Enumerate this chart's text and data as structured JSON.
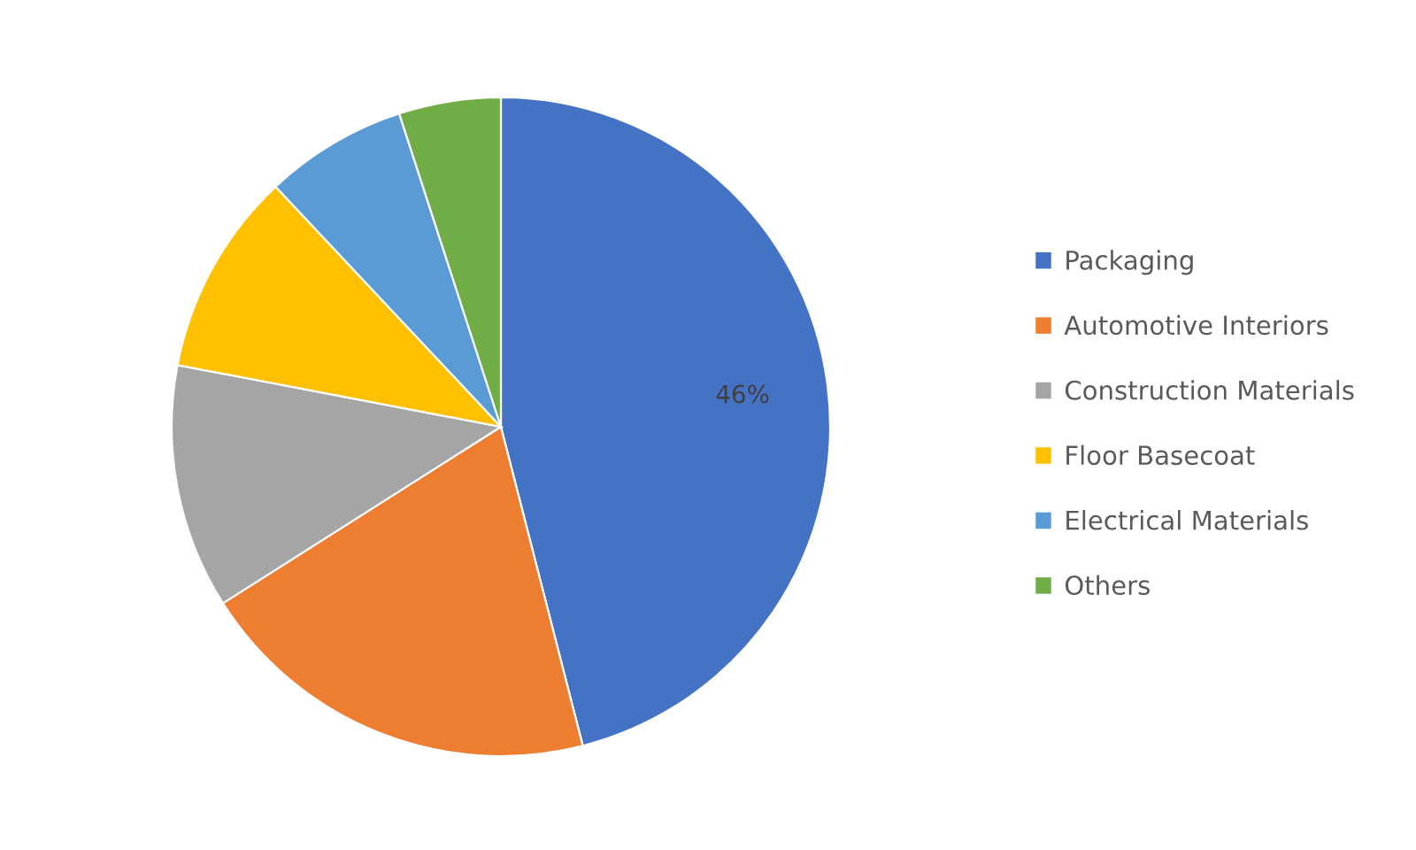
{
  "chart_data": {
    "type": "pie",
    "categories": [
      "Packaging",
      "Automotive Interiors",
      "Construction Materials",
      "Floor Basecoat",
      "Electrical Materials",
      "Others"
    ],
    "values": [
      46,
      20,
      12,
      10,
      7,
      5
    ],
    "colors": [
      "#4472c4",
      "#ed7d31",
      "#a5a5a5",
      "#ffc000",
      "#5b9bd5",
      "#70ad47"
    ],
    "value_labels": [
      "46%",
      null,
      null,
      null,
      null,
      null
    ],
    "legend": "right"
  }
}
